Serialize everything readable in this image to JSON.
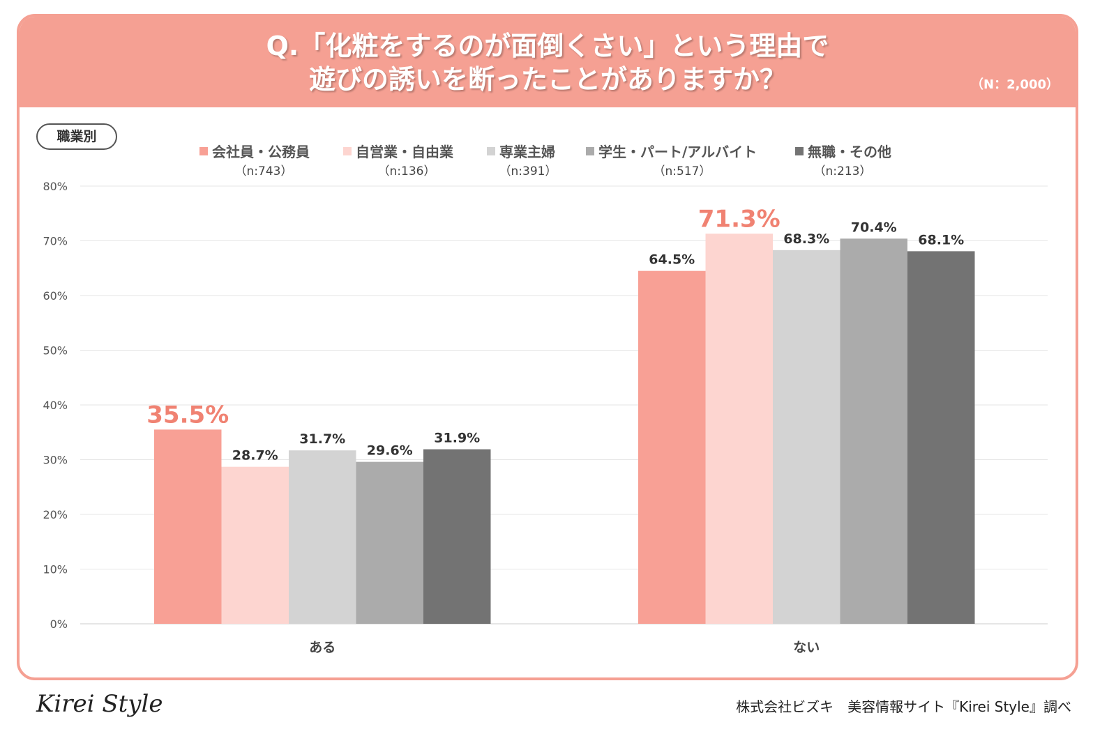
{
  "header": {
    "title_line1": "Q.「化粧をするのが面倒くさい」という理由で",
    "title_line2": "遊びの誘いを断ったことがありますか？",
    "sample": "（N：2,000）"
  },
  "badge": "職業別",
  "footer": {
    "logo": "Kirei Style",
    "credit": "株式会社ビズキ　美容情報サイト『Kirei Style』調べ"
  },
  "chart_data": {
    "type": "bar",
    "categories": [
      "ある",
      "ない"
    ],
    "series": [
      {
        "name": "会社員・公務員",
        "n": "（n:743）",
        "color": "#f8a095",
        "values": [
          35.5,
          64.5
        ]
      },
      {
        "name": "自営業・自由業",
        "n": "（n:136）",
        "color": "#fdd5d0",
        "values": [
          28.7,
          71.3
        ]
      },
      {
        "name": "専業主婦",
        "n": "（n:391）",
        "color": "#d3d3d3",
        "values": [
          31.7,
          68.3
        ]
      },
      {
        "name": "学生・パート/アルバイト",
        "n": "（n:517）",
        "color": "#ababab",
        "values": [
          29.6,
          70.4
        ]
      },
      {
        "name": "無職・その他",
        "n": "（n:213）",
        "color": "#737373",
        "values": [
          31.9,
          68.1
        ]
      }
    ],
    "highlights": [
      [
        0,
        0
      ],
      [
        1,
        1
      ]
    ],
    "highlight_color": "#f08272",
    "ylim": [
      0,
      80
    ],
    "yticks": [
      "0%",
      "10%",
      "20%",
      "30%",
      "40%",
      "50%",
      "60%",
      "70%",
      "80%"
    ],
    "grid": true,
    "legend": "top"
  }
}
